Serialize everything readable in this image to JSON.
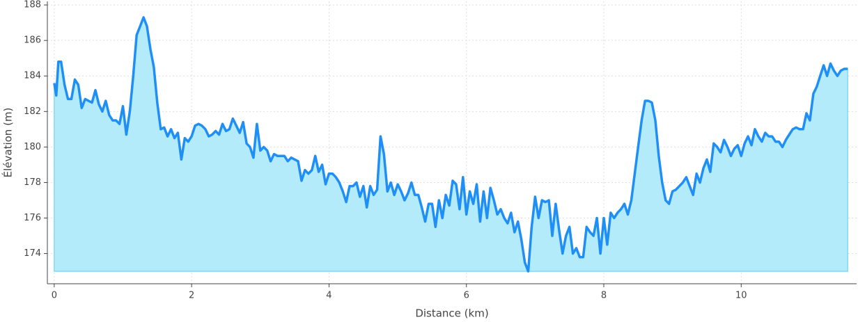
{
  "chart_data": {
    "type": "area",
    "xlabel": "Distance (km)",
    "ylabel": "Élévation (m)",
    "xlim": [
      -0.1,
      11.68
    ],
    "ylim": [
      172.3,
      188.2
    ],
    "xticks": [
      0,
      2,
      4,
      6,
      8,
      10
    ],
    "yticks": [
      174,
      176,
      178,
      180,
      182,
      184,
      186,
      188
    ],
    "grid": true,
    "color": "#1f8ef5",
    "fill_color": "#b3ebfb",
    "fill_edge_color": "#7fdcf5",
    "x": [
      0,
      0.03,
      0.06,
      0.1,
      0.15,
      0.2,
      0.25,
      0.3,
      0.35,
      0.4,
      0.45,
      0.5,
      0.55,
      0.6,
      0.65,
      0.7,
      0.75,
      0.8,
      0.85,
      0.9,
      0.95,
      1.0,
      1.05,
      1.1,
      1.15,
      1.2,
      1.25,
      1.3,
      1.35,
      1.4,
      1.45,
      1.5,
      1.55,
      1.6,
      1.65,
      1.7,
      1.75,
      1.8,
      1.85,
      1.9,
      1.95,
      2.0,
      2.05,
      2.1,
      2.15,
      2.2,
      2.25,
      2.3,
      2.35,
      2.4,
      2.45,
      2.5,
      2.55,
      2.6,
      2.65,
      2.7,
      2.75,
      2.8,
      2.85,
      2.9,
      2.95,
      3.0,
      3.05,
      3.1,
      3.15,
      3.2,
      3.25,
      3.3,
      3.35,
      3.4,
      3.45,
      3.5,
      3.55,
      3.6,
      3.65,
      3.7,
      3.75,
      3.8,
      3.85,
      3.9,
      3.95,
      4.0,
      4.05,
      4.1,
      4.15,
      4.2,
      4.25,
      4.3,
      4.35,
      4.4,
      4.45,
      4.5,
      4.55,
      4.6,
      4.65,
      4.7,
      4.75,
      4.8,
      4.85,
      4.9,
      4.95,
      5.0,
      5.05,
      5.1,
      5.15,
      5.2,
      5.25,
      5.3,
      5.35,
      5.4,
      5.45,
      5.5,
      5.55,
      5.6,
      5.65,
      5.7,
      5.75,
      5.8,
      5.85,
      5.9,
      5.95,
      6.0,
      6.05,
      6.1,
      6.15,
      6.2,
      6.25,
      6.3,
      6.35,
      6.4,
      6.45,
      6.5,
      6.55,
      6.6,
      6.65,
      6.7,
      6.75,
      6.8,
      6.85,
      6.9,
      6.95,
      7.0,
      7.05,
      7.1,
      7.15,
      7.2,
      7.25,
      7.3,
      7.35,
      7.4,
      7.45,
      7.5,
      7.55,
      7.6,
      7.65,
      7.7,
      7.75,
      7.8,
      7.85,
      7.9,
      7.95,
      8.0,
      8.05,
      8.1,
      8.15,
      8.2,
      8.25,
      8.3,
      8.35,
      8.4,
      8.45,
      8.5,
      8.55,
      8.6,
      8.65,
      8.7,
      8.75,
      8.8,
      8.85,
      8.9,
      8.95,
      9.0,
      9.05,
      9.1,
      9.15,
      9.2,
      9.25,
      9.3,
      9.35,
      9.4,
      9.45,
      9.5,
      9.55,
      9.6,
      9.65,
      9.7,
      9.75,
      9.8,
      9.85,
      9.9,
      9.95,
      10.0,
      10.05,
      10.1,
      10.15,
      10.2,
      10.25,
      10.3,
      10.35,
      10.4,
      10.45,
      10.5,
      10.55,
      10.6,
      10.65,
      10.7,
      10.75,
      10.8,
      10.85,
      10.9,
      10.95,
      11.0,
      11.05,
      11.1,
      11.15,
      11.2,
      11.25,
      11.3,
      11.35,
      11.4,
      11.45,
      11.5,
      11.55
    ],
    "values": [
      183.6,
      182.9,
      184.8,
      184.8,
      183.5,
      182.7,
      182.7,
      183.8,
      183.5,
      182.2,
      182.7,
      182.6,
      182.5,
      183.2,
      182.4,
      182.0,
      182.6,
      181.8,
      181.5,
      181.5,
      181.3,
      182.3,
      180.7,
      182.0,
      184.0,
      186.3,
      186.8,
      187.3,
      186.8,
      185.5,
      184.5,
      182.5,
      181.0,
      181.1,
      180.6,
      181.0,
      180.5,
      180.8,
      179.3,
      180.5,
      180.3,
      180.6,
      181.2,
      181.3,
      181.2,
      181.0,
      180.6,
      180.7,
      180.9,
      180.7,
      181.3,
      180.9,
      181.0,
      181.6,
      181.2,
      180.8,
      181.4,
      180.2,
      180.0,
      179.4,
      181.3,
      179.8,
      180.0,
      179.8,
      179.2,
      179.6,
      179.5,
      179.5,
      179.5,
      179.2,
      179.4,
      179.3,
      179.2,
      178.1,
      178.7,
      178.5,
      178.7,
      179.5,
      178.6,
      179.0,
      177.9,
      178.5,
      178.5,
      178.3,
      178.0,
      177.5,
      176.9,
      177.8,
      177.8,
      178.0,
      177.2,
      177.8,
      176.6,
      177.8,
      177.3,
      177.6,
      180.6,
      179.6,
      177.5,
      178.0,
      177.3,
      177.9,
      177.5,
      177.0,
      177.4,
      178.0,
      177.3,
      177.3,
      176.6,
      175.8,
      176.8,
      176.8,
      175.5,
      177.0,
      176.0,
      177.3,
      176.7,
      178.1,
      177.9,
      176.5,
      178.3,
      176.2,
      177.5,
      176.8,
      177.9,
      175.8,
      177.5,
      176.0,
      177.7,
      177.0,
      176.2,
      176.5,
      176.0,
      175.7,
      176.3,
      175.2,
      175.8,
      174.8,
      173.5,
      173.0,
      175.5,
      177.2,
      176.0,
      177.0,
      176.9,
      177.0,
      175.0,
      176.8,
      175.3,
      174.0,
      175.0,
      175.5,
      174.0,
      174.3,
      173.8,
      173.8,
      175.5,
      175.2,
      175.0,
      176.0,
      174.0,
      176.0,
      174.5,
      176.3,
      176.0,
      176.3,
      176.5,
      176.8,
      176.2,
      177.0,
      178.5,
      180.0,
      181.5,
      182.6,
      182.6,
      182.5,
      181.5,
      179.5,
      178.0,
      177.0,
      176.8,
      177.5,
      177.6,
      177.8,
      178.0,
      178.3,
      177.8,
      177.3,
      178.5,
      178.0,
      178.8,
      179.3,
      178.6,
      180.2,
      180.0,
      179.7,
      180.4,
      180.0,
      179.5,
      179.9,
      180.1,
      179.5,
      180.2,
      180.6,
      180.1,
      181.0,
      180.6,
      180.3,
      180.8,
      180.6,
      180.6,
      180.3,
      180.3,
      180.0,
      180.4,
      180.7,
      181.0,
      181.1,
      181.0,
      181.0,
      181.9,
      181.5,
      183.0,
      183.4,
      184.0,
      184.6,
      184.0,
      184.7,
      184.3,
      184.0,
      184.3,
      184.4,
      184.4
    ]
  }
}
